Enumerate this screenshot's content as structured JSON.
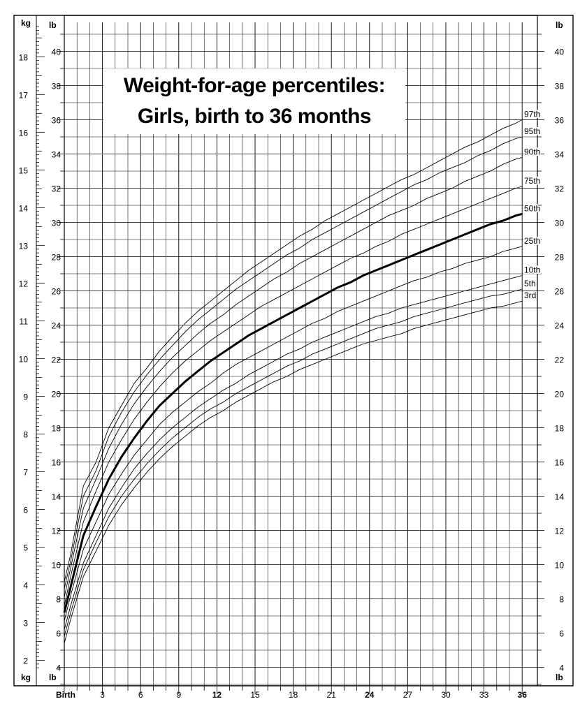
{
  "chart_data": {
    "type": "line",
    "title": "Weight-for-age percentiles:",
    "subtitle": "Girls, birth to 36 months",
    "x_start_label": "Birth",
    "x_ticks": [
      3,
      6,
      9,
      12,
      15,
      18,
      21,
      24,
      27,
      30,
      33,
      36
    ],
    "x_bold_ticks": [
      12,
      24,
      36
    ],
    "xlim": [
      0,
      36
    ],
    "left_unit": "kg",
    "right_unit": "lb",
    "inner_unit": "lb",
    "kg_ticks": [
      2,
      3,
      4,
      5,
      6,
      7,
      8,
      9,
      10,
      11,
      12,
      13,
      14,
      15,
      16,
      17,
      18
    ],
    "lb_ticks": [
      4,
      6,
      8,
      10,
      12,
      14,
      16,
      18,
      20,
      22,
      24,
      26,
      28,
      30,
      32,
      34,
      36,
      38,
      40
    ],
    "ylim_lb": [
      2.9,
      41.7
    ],
    "grid": true,
    "x": [
      0,
      0.5,
      1.5,
      2.5,
      3.5,
      4.5,
      5.5,
      6.5,
      7.5,
      8.5,
      9.5,
      10.5,
      11.5,
      12.5,
      13.5,
      14.5,
      15.5,
      16.5,
      17.5,
      18.5,
      19.5,
      20.5,
      21.5,
      22.5,
      23.5,
      24.5,
      25.5,
      26.5,
      27.5,
      28.5,
      29.5,
      30.5,
      31.5,
      32.5,
      33.5,
      34.5,
      35.5,
      36
    ],
    "series": [
      {
        "name": "97th",
        "values": [
          9.0,
          10.6,
          14.6,
          16.0,
          18.0,
          19.3,
          20.6,
          21.5,
          22.5,
          23.3,
          24.1,
          24.8,
          25.4,
          26.0,
          26.6,
          27.2,
          27.7,
          28.2,
          28.7,
          29.2,
          29.6,
          30.1,
          30.5,
          30.9,
          31.3,
          31.7,
          32.1,
          32.5,
          32.8,
          33.2,
          33.6,
          34.0,
          34.4,
          34.7,
          35.1,
          35.5,
          35.8,
          36.0
        ]
      },
      {
        "name": "95th",
        "values": [
          8.6,
          10.2,
          14.0,
          15.5,
          17.5,
          18.9,
          20.1,
          21.1,
          22.0,
          22.8,
          23.6,
          24.3,
          24.9,
          25.5,
          26.1,
          26.6,
          27.1,
          27.6,
          28.1,
          28.5,
          29.0,
          29.4,
          29.8,
          30.2,
          30.6,
          31.0,
          31.4,
          31.8,
          32.2,
          32.5,
          32.9,
          33.2,
          33.5,
          33.9,
          34.2,
          34.6,
          34.9,
          35.0
        ]
      },
      {
        "name": "90th",
        "values": [
          8.1,
          9.8,
          13.3,
          15.0,
          16.8,
          18.2,
          19.4,
          20.4,
          21.3,
          22.1,
          22.8,
          23.5,
          24.1,
          24.6,
          25.2,
          25.7,
          26.2,
          26.7,
          27.1,
          27.6,
          28.0,
          28.4,
          28.8,
          29.2,
          29.6,
          30.0,
          30.4,
          30.7,
          31.0,
          31.4,
          31.7,
          32.0,
          32.4,
          32.7,
          33.0,
          33.4,
          33.7,
          33.8
        ]
      },
      {
        "name": "75th",
        "values": [
          7.6,
          9.3,
          12.5,
          14.3,
          16.0,
          17.3,
          18.5,
          19.5,
          20.4,
          21.2,
          21.9,
          22.5,
          23.1,
          23.6,
          24.1,
          24.6,
          25.1,
          25.5,
          25.9,
          26.3,
          26.7,
          27.1,
          27.5,
          27.9,
          28.2,
          28.6,
          28.9,
          29.3,
          29.6,
          29.9,
          30.2,
          30.5,
          30.8,
          31.1,
          31.4,
          31.7,
          32.0,
          32.1
        ]
      },
      {
        "name": "50th",
        "values": [
          7.2,
          8.7,
          11.7,
          13.4,
          15.0,
          16.3,
          17.4,
          18.4,
          19.3,
          20.0,
          20.7,
          21.3,
          21.9,
          22.4,
          22.9,
          23.4,
          23.8,
          24.2,
          24.6,
          25.0,
          25.4,
          25.8,
          26.2,
          26.5,
          26.9,
          27.2,
          27.5,
          27.8,
          28.1,
          28.4,
          28.7,
          29.0,
          29.3,
          29.6,
          29.9,
          30.1,
          30.4,
          30.5
        ]
      },
      {
        "name": "25th",
        "values": [
          6.7,
          8.2,
          10.9,
          12.5,
          14.1,
          15.3,
          16.4,
          17.3,
          18.2,
          18.9,
          19.5,
          20.1,
          20.6,
          21.2,
          21.7,
          22.1,
          22.5,
          22.9,
          23.3,
          23.7,
          24.1,
          24.4,
          24.8,
          25.1,
          25.4,
          25.7,
          26.0,
          26.3,
          26.6,
          26.8,
          27.1,
          27.3,
          27.6,
          27.8,
          28.0,
          28.3,
          28.5,
          28.6
        ]
      },
      {
        "name": "10th",
        "values": [
          6.2,
          7.6,
          10.1,
          11.7,
          13.3,
          14.5,
          15.6,
          16.5,
          17.3,
          18.0,
          18.6,
          19.2,
          19.7,
          20.2,
          20.6,
          21.1,
          21.5,
          21.9,
          22.3,
          22.6,
          23.0,
          23.3,
          23.6,
          23.9,
          24.2,
          24.5,
          24.7,
          25.0,
          25.2,
          25.4,
          25.6,
          25.8,
          26.0,
          26.2,
          26.4,
          26.6,
          26.8,
          26.9
        ]
      },
      {
        "name": "5th",
        "values": [
          5.8,
          7.2,
          9.7,
          11.3,
          12.8,
          14.0,
          15.0,
          15.9,
          16.7,
          17.4,
          18.0,
          18.6,
          19.1,
          19.5,
          20.0,
          20.4,
          20.8,
          21.2,
          21.6,
          21.9,
          22.3,
          22.6,
          22.9,
          23.2,
          23.5,
          23.8,
          24.0,
          24.2,
          24.5,
          24.7,
          24.9,
          25.1,
          25.3,
          25.5,
          25.7,
          25.8,
          26.0,
          26.1
        ]
      },
      {
        "name": "3rd",
        "values": [
          5.4,
          6.8,
          9.3,
          10.8,
          12.3,
          13.5,
          14.5,
          15.4,
          16.2,
          16.9,
          17.5,
          18.1,
          18.6,
          19.0,
          19.5,
          19.9,
          20.3,
          20.7,
          21.0,
          21.4,
          21.7,
          22.0,
          22.3,
          22.6,
          22.9,
          23.1,
          23.3,
          23.5,
          23.8,
          24.0,
          24.2,
          24.4,
          24.6,
          24.8,
          25.0,
          25.1,
          25.3,
          25.4
        ]
      }
    ]
  }
}
